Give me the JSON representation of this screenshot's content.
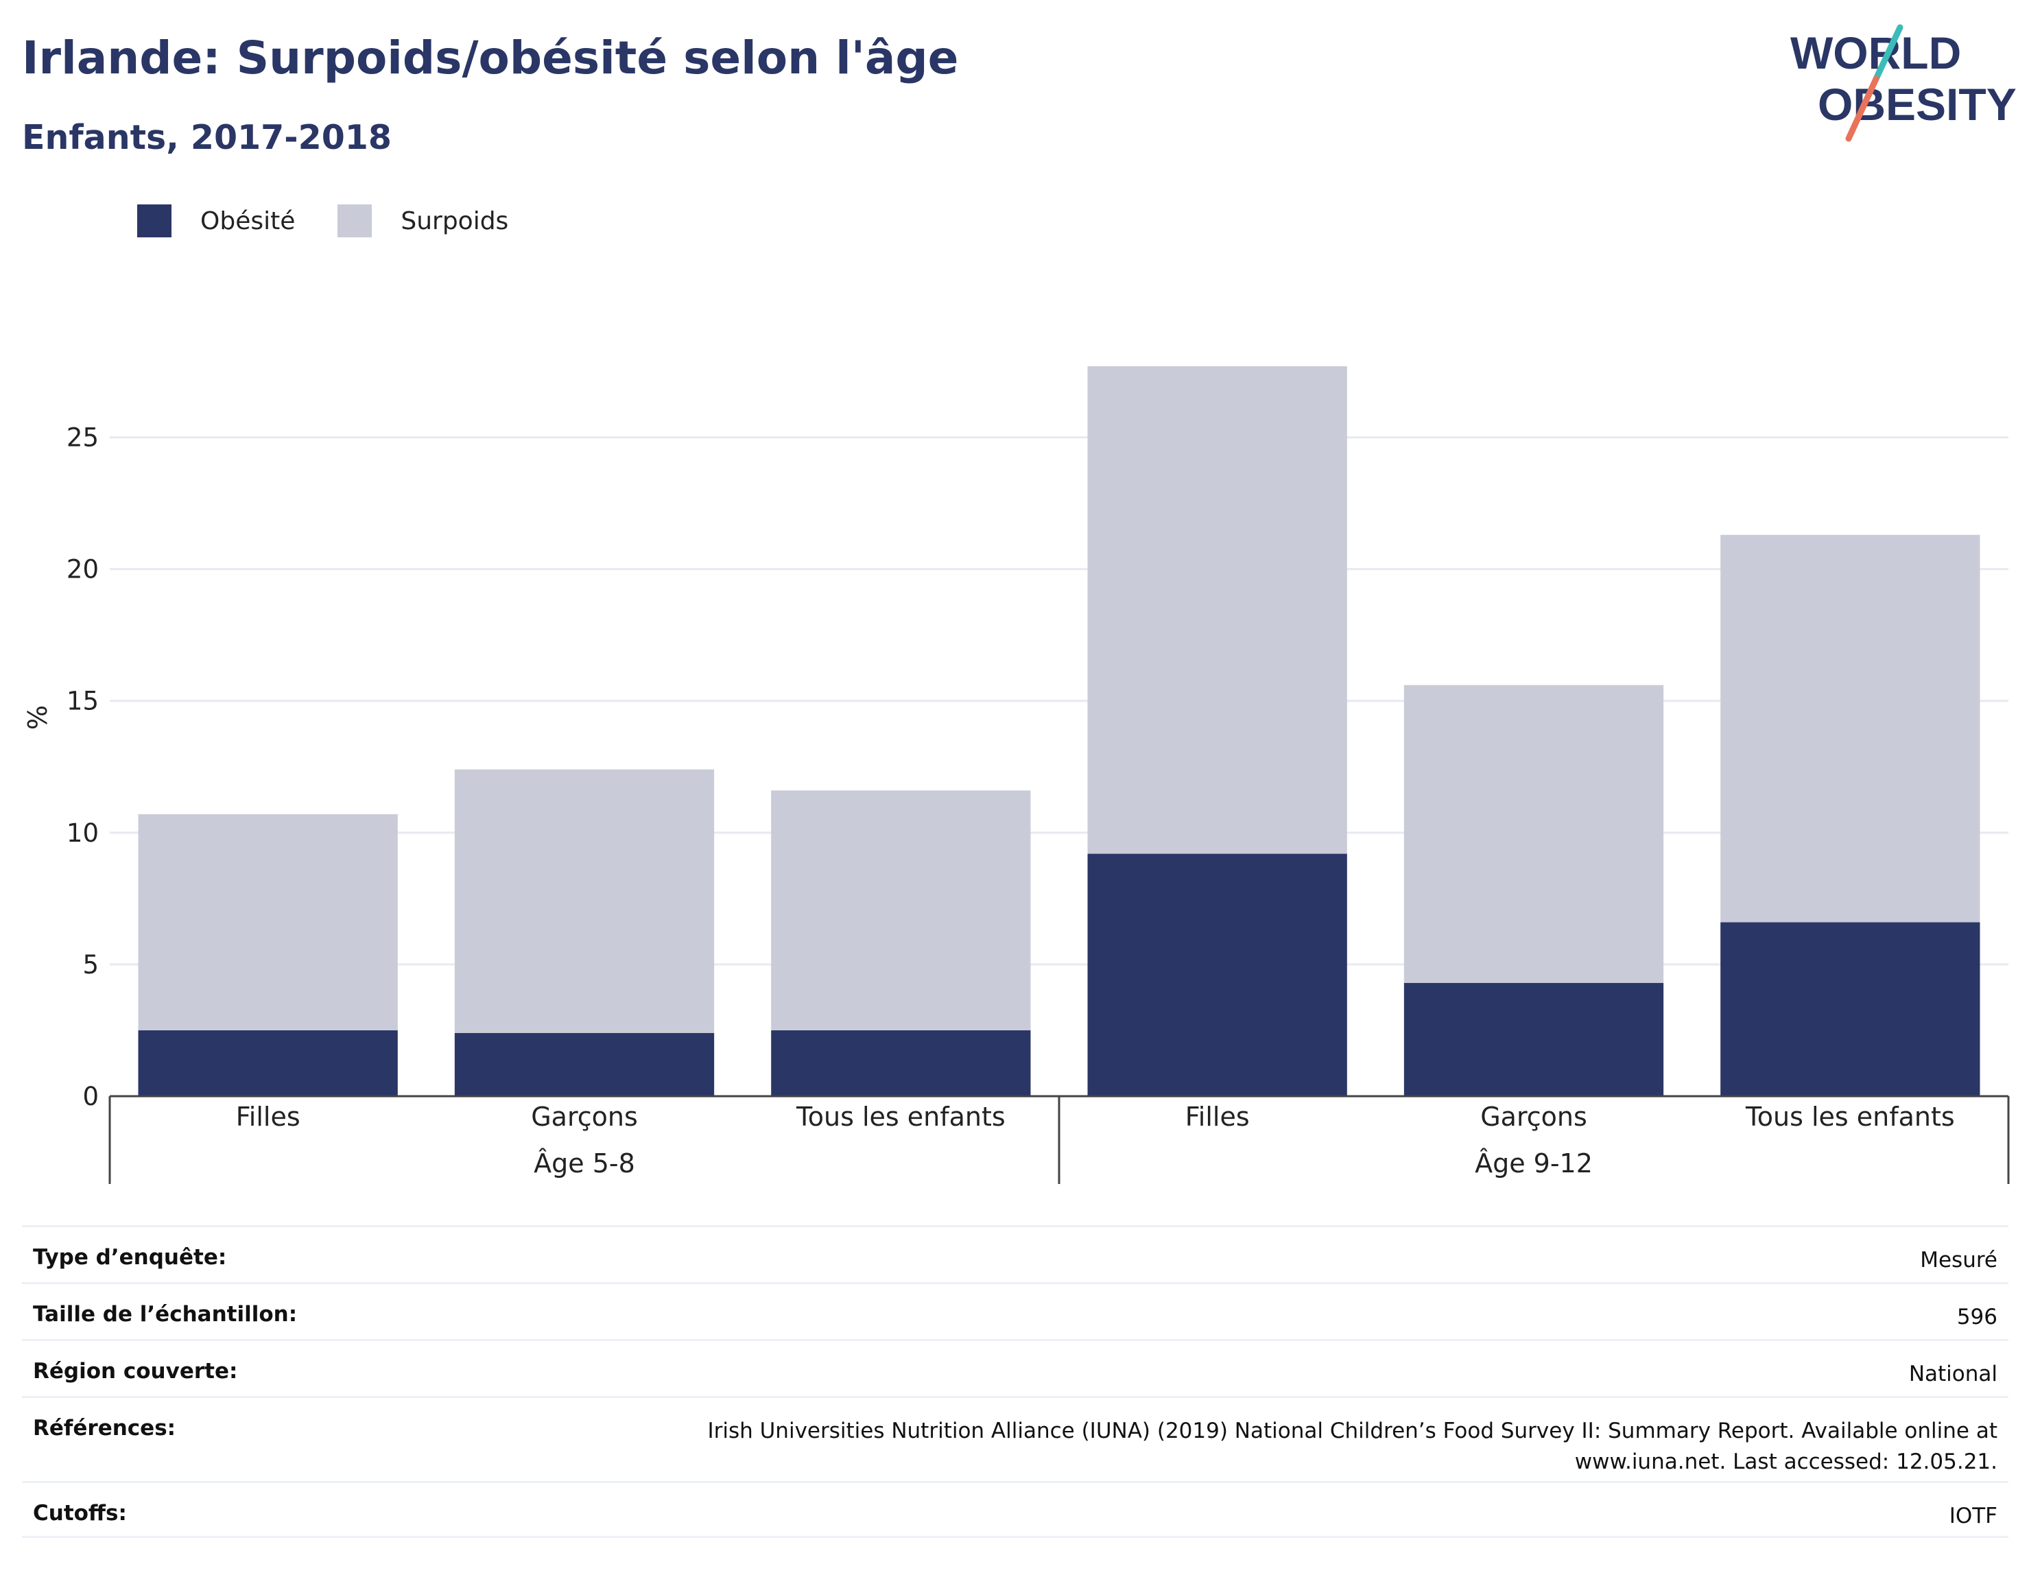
{
  "title": "Irlande: Surpoids/obésité selon l'âge",
  "subtitle": "Enfants, 2017-2018",
  "logo": {
    "line1": "WORLD",
    "line2": "OBESITY",
    "accent_teal": "#3bbcb8",
    "accent_coral": "#e9735a",
    "text_color": "#2a3665"
  },
  "legend": [
    {
      "label": "Obésité",
      "color": "#2a3665"
    },
    {
      "label": "Surpoids",
      "color": "#cacbd8"
    }
  ],
  "chart_data": {
    "type": "bar",
    "stacked": true,
    "ylabel": "%",
    "ylim": [
      0,
      27.8
    ],
    "yticks": [
      0,
      5,
      10,
      15,
      20,
      25
    ],
    "grid": true,
    "legend_position": "top-left",
    "categories": [
      "Filles",
      "Garçons",
      "Tous les enfants",
      "Filles",
      "Garçons",
      "Tous les enfants"
    ],
    "groups": [
      {
        "label": "Âge 5-8",
        "start": 0,
        "end": 2
      },
      {
        "label": "Âge 9-12",
        "start": 3,
        "end": 5
      }
    ],
    "series": [
      {
        "name": "Obésité",
        "color": "#2a3665",
        "values": [
          2.5,
          2.4,
          2.5,
          9.2,
          4.3,
          6.6
        ]
      },
      {
        "name": "Surpoids",
        "color": "#cacbd8",
        "values": [
          8.2,
          10.0,
          9.1,
          18.5,
          11.3,
          14.7
        ]
      }
    ]
  },
  "meta": [
    {
      "key": "Type d’enquête:",
      "value": "Mesuré"
    },
    {
      "key": "Taille de l’échantillon:",
      "value": "596"
    },
    {
      "key": "Région couverte:",
      "value": "National"
    },
    {
      "key": "Références:",
      "value": "Irish Universities Nutrition Alliance (IUNA) (2019) National Children’s Food Survey II: Summary Report. Available online at www.iuna.net. Last accessed: 12.05.21."
    },
    {
      "key": "Cutoffs:",
      "value": "IOTF"
    }
  ]
}
